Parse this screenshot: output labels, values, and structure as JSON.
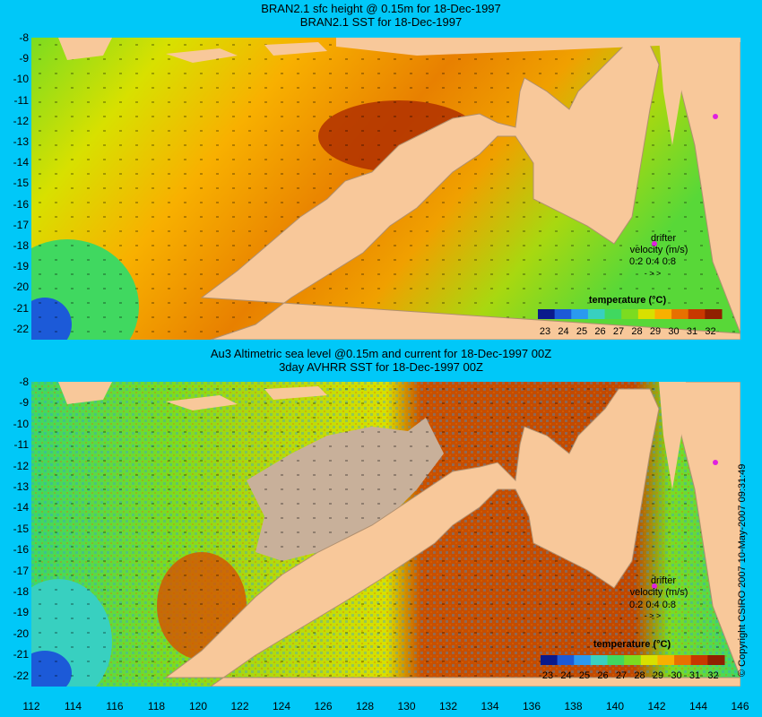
{
  "panel1": {
    "title_line1": "BRAN2.1 sfc height @ 0.15m for 18-Dec-1997",
    "title_line2": "BRAN2.1 SST for 18-Dec-1997"
  },
  "panel2": {
    "title_line1": "Au3 Altimetric sea level  @0.15m and current for 18-Dec-1997 00Z",
    "title_line2": "3day AVHRR SST for 18-Dec-1997 00Z"
  },
  "y_ticks": [
    "-8",
    "-9",
    "-10",
    "-11",
    "-12",
    "-13",
    "-14",
    "-15",
    "-16",
    "-17",
    "-18",
    "-19",
    "-20",
    "-21",
    "-22"
  ],
  "x_ticks": [
    "112",
    "114",
    "116",
    "118",
    "120",
    "122",
    "124",
    "126",
    "128",
    "130",
    "132",
    "134",
    "136",
    "138",
    "140",
    "142",
    "144",
    "146"
  ],
  "legend": {
    "title": "temperature (°C)",
    "ticks": [
      "23",
      "24",
      "25",
      "26",
      "27",
      "28",
      "29",
      "30",
      "31",
      "32"
    ],
    "colors": [
      "#0a1a8c",
      "#1c5ad8",
      "#2a9af0",
      "#38d0c0",
      "#40d860",
      "#7cdc20",
      "#d8e000",
      "#f8b000",
      "#e87000",
      "#c83800",
      "#902000"
    ]
  },
  "drifter": {
    "label": "drifter",
    "velocity_label": "velocity (m/s)",
    "scale": "0.2 0.4 0.8",
    "arrows": "-   >   >"
  },
  "colors": {
    "background": "#00c8f8",
    "land": "#f8c89a",
    "no_data": "#c8b09a",
    "marker": "#e020e0"
  },
  "copyright": "© Copyright CSIRO 2007   10-May-2007 09:31:49"
}
